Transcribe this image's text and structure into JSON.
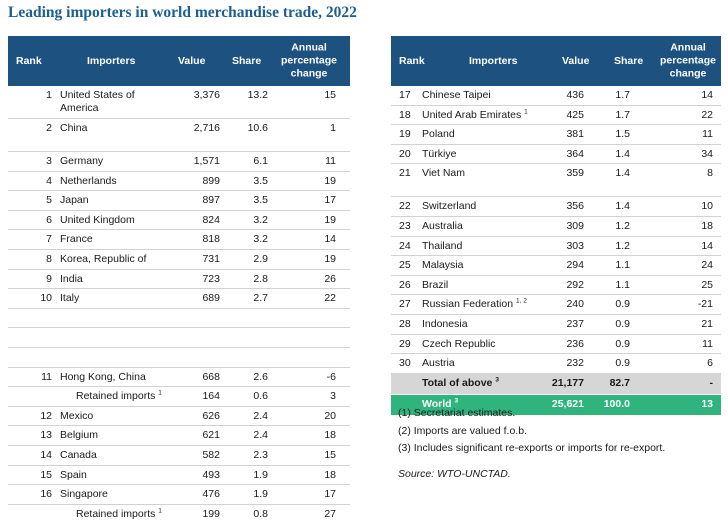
{
  "title": "Leading importers in world merchandise trade, 2022",
  "headers": {
    "rank": "Rank",
    "importers": "Importers",
    "value": "Value",
    "share": "Share",
    "change_l1": "Annual",
    "change_l2": "percentage",
    "change_l3": "change"
  },
  "left": {
    "r1": {
      "rank": "1",
      "name1": "United States of",
      "name2": "America",
      "value": "3,376",
      "share": "13.2",
      "change": "15"
    },
    "r2": {
      "rank": "2",
      "name": "China",
      "value": "2,716",
      "share": "10.6",
      "change": "1"
    },
    "r3": {
      "rank": "3",
      "name": "Germany",
      "value": "1,571",
      "share": "6.1",
      "change": "11"
    },
    "r4": {
      "rank": "4",
      "name": "Netherlands",
      "value": "899",
      "share": "3.5",
      "change": "19"
    },
    "r5": {
      "rank": "5",
      "name": "Japan",
      "value": "897",
      "share": "3.5",
      "change": "17"
    },
    "r6": {
      "rank": "6",
      "name": "United Kingdom",
      "value": "824",
      "share": "3.2",
      "change": "19"
    },
    "r7": {
      "rank": "7",
      "name": "France",
      "value": "818",
      "share": "3.2",
      "change": "14"
    },
    "r8": {
      "rank": "8",
      "name": "Korea, Republic of",
      "value": "731",
      "share": "2.9",
      "change": "19"
    },
    "r9": {
      "rank": "9",
      "name": "India",
      "value": "723",
      "share": "2.8",
      "change": "26"
    },
    "r10": {
      "rank": "10",
      "name": "Italy",
      "value": "689",
      "share": "2.7",
      "change": "22"
    },
    "r11": {
      "rank": "11",
      "name": "Hong Kong, China",
      "value": "668",
      "share": "2.6",
      "change": "-6"
    },
    "r11b": {
      "name": "Retained imports",
      "note": "1",
      "value": "164",
      "share": "0.6",
      "change": "3"
    },
    "r12": {
      "rank": "12",
      "name": "Mexico",
      "value": "626",
      "share": "2.4",
      "change": "20"
    },
    "r13": {
      "rank": "13",
      "name": "Belgium",
      "value": "621",
      "share": "2.4",
      "change": "18"
    },
    "r14": {
      "rank": "14",
      "name": "Canada",
      "value": "582",
      "share": "2.3",
      "change": "15"
    },
    "r15": {
      "rank": "15",
      "name": "Spain",
      "value": "493",
      "share": "1.9",
      "change": "18"
    },
    "r16": {
      "rank": "16",
      "name": "Singapore",
      "value": "476",
      "share": "1.9",
      "change": "17"
    },
    "r16b": {
      "name": "Retained imports",
      "note": "1",
      "value": "199",
      "share": "0.8",
      "change": "27"
    }
  },
  "right": {
    "r17": {
      "rank": "17",
      "name": "Chinese Taipei",
      "value": "436",
      "share": "1.7",
      "change": "14"
    },
    "r18": {
      "rank": "18",
      "name": "United Arab Emirates",
      "note": "1",
      "value": "425",
      "share": "1.7",
      "change": "22"
    },
    "r19": {
      "rank": "19",
      "name": "Poland",
      "value": "381",
      "share": "1.5",
      "change": "11"
    },
    "r20": {
      "rank": "20",
      "name": "Türkiye",
      "value": "364",
      "share": "1.4",
      "change": "34"
    },
    "r21": {
      "rank": "21",
      "name": "Viet Nam",
      "value": "359",
      "share": "1.4",
      "change": "8"
    },
    "r22": {
      "rank": "22",
      "name": "Switzerland",
      "value": "356",
      "share": "1.4",
      "change": "10"
    },
    "r23": {
      "rank": "23",
      "name": "Australia",
      "value": "309",
      "share": "1.2",
      "change": "18"
    },
    "r24": {
      "rank": "24",
      "name": "Thailand",
      "value": "303",
      "share": "1.2",
      "change": "14"
    },
    "r25": {
      "rank": "25",
      "name": "Malaysia",
      "value": "294",
      "share": "1.1",
      "change": "24"
    },
    "r26": {
      "rank": "26",
      "name": "Brazil",
      "value": "292",
      "share": "1.1",
      "change": "25"
    },
    "r27": {
      "rank": "27",
      "name": "Russian Federation",
      "note": "1, 2",
      "value": "240",
      "share": "0.9",
      "change": "-21"
    },
    "r28": {
      "rank": "28",
      "name": "Indonesia",
      "value": "237",
      "share": "0.9",
      "change": "21"
    },
    "r29": {
      "rank": "29",
      "name": "Czech Republic",
      "value": "236",
      "share": "0.9",
      "change": "11"
    },
    "r30": {
      "rank": "30",
      "name": "Austria",
      "value": "232",
      "share": "0.9",
      "change": "6"
    },
    "total": {
      "name": "Total of above",
      "note": "3",
      "value": "21,177",
      "share": "82.7",
      "change": "-"
    },
    "world": {
      "name": "World",
      "note": "3",
      "value": "25,621",
      "share": "100.0",
      "change": "13"
    }
  },
  "notes": [
    "(1)  Secretariat estimates.",
    "(2)  Imports are valued f.o.b.",
    "(3)  Includes significant re-exports or imports for re-export."
  ],
  "source": "Source: WTO-UNCTAD."
}
